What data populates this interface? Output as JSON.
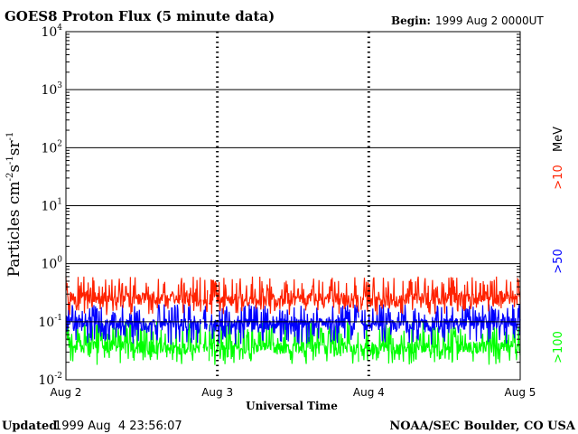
{
  "header": {
    "title": "GOES8 Proton Flux (5 minute data)",
    "begin_label": "Begin:",
    "begin_value": "1999 Aug 2 0000UT"
  },
  "footer": {
    "updated_label": "Updated",
    "updated_value": "1999 Aug  4 23:56:07",
    "credit": "NOAA/SEC Boulder, CO USA"
  },
  "chart_data": {
    "type": "line",
    "title": "GOES8 Proton Flux (5 minute data)",
    "xlabel": "Universal Time",
    "ylabel": "Particles cm^-2 s^-1 sr^-1",
    "yscale": "log",
    "ylim": [
      0.01,
      10000
    ],
    "xlim": [
      0,
      3
    ],
    "x_unit": "days since 1999 Aug 2 00:00 UT",
    "x_ticks": [
      {
        "value": 0,
        "label": "Aug 2"
      },
      {
        "value": 1,
        "label": "Aug 3"
      },
      {
        "value": 2,
        "label": "Aug 4"
      },
      {
        "value": 3,
        "label": "Aug 5"
      }
    ],
    "y_ticks": [
      {
        "value": 0.01,
        "base": "10",
        "exp": "-2"
      },
      {
        "value": 0.1,
        "base": "10",
        "exp": "-1"
      },
      {
        "value": 1,
        "base": "10",
        "exp": "0"
      },
      {
        "value": 10,
        "base": "10",
        "exp": "1"
      },
      {
        "value": 100,
        "base": "10",
        "exp": "2"
      },
      {
        "value": 1000,
        "base": "10",
        "exp": "3"
      },
      {
        "value": 10000,
        "base": "10",
        "exp": "4"
      }
    ],
    "grid": true,
    "legend": {
      "placement": "right",
      "unit": "MeV",
      "entries": [
        {
          "label": ">10",
          "color": "#ff2200"
        },
        {
          "label": ">50",
          "color": "#0000ff"
        },
        {
          "label": ">100",
          "color": "#00ff00"
        }
      ]
    },
    "data_gaps": [
      [
        0.895,
        0.905
      ],
      [
        0.935,
        0.945
      ],
      [
        1.935,
        1.945
      ]
    ],
    "series": [
      {
        "name": ">10 MeV",
        "color": "#ff2200",
        "x": [
          0,
          0.25,
          0.5,
          0.75,
          1.0,
          1.25,
          1.5,
          1.75,
          2.0,
          2.25,
          2.5,
          2.75,
          3.0
        ],
        "values": [
          0.28,
          0.26,
          0.25,
          0.25,
          0.24,
          0.25,
          0.26,
          0.25,
          0.24,
          0.25,
          0.26,
          0.26,
          0.28
        ],
        "min": 0.13,
        "max": 0.6
      },
      {
        "name": ">50 MeV",
        "color": "#0000ff",
        "x": [
          0,
          0.25,
          0.5,
          0.75,
          1.0,
          1.25,
          1.5,
          1.75,
          2.0,
          2.25,
          2.5,
          2.75,
          3.0
        ],
        "values": [
          0.1,
          0.09,
          0.09,
          0.09,
          0.09,
          0.09,
          0.1,
          0.09,
          0.09,
          0.09,
          0.09,
          0.1,
          0.1
        ],
        "min": 0.04,
        "max": 0.2
      },
      {
        "name": ">100 MeV",
        "color": "#00ff00",
        "x": [
          0,
          0.25,
          0.5,
          0.75,
          1.0,
          1.25,
          1.5,
          1.75,
          2.0,
          2.25,
          2.5,
          2.75,
          3.0
        ],
        "values": [
          0.04,
          0.038,
          0.037,
          0.036,
          0.036,
          0.036,
          0.037,
          0.036,
          0.036,
          0.036,
          0.037,
          0.038,
          0.04
        ],
        "min": 0.018,
        "max": 0.1
      }
    ]
  }
}
